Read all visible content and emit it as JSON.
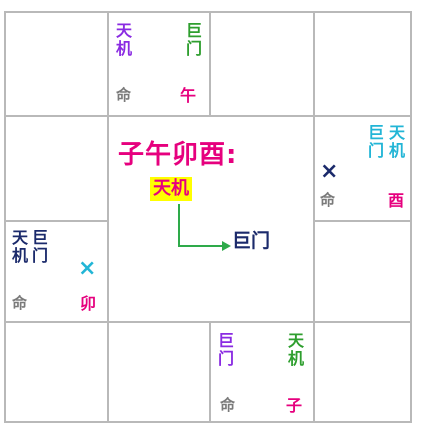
{
  "colors": {
    "grid": "#b9b9b9",
    "tianji": "#8a2be2",
    "jumen": "#2e9e2e",
    "cyan": "#22b5d6",
    "magenta": "#e6007e",
    "navy": "#1b2a6b",
    "arrow": "#2eaa4a",
    "highlight": "#ffff00"
  },
  "title": "子午卯酉:",
  "highlight_label": "天机",
  "arrow_target": "巨门",
  "palaces": {
    "wu": {
      "star_a": "天机",
      "star_b": "巨门",
      "ming": "命",
      "branch": "午"
    },
    "you": {
      "star_a": "巨门",
      "star_b": "天机",
      "mark": "×",
      "ming": "命",
      "branch": "酉"
    },
    "mao": {
      "star_a": "天机",
      "star_b": "巨门",
      "mark": "×",
      "ming": "命",
      "branch": "卯"
    },
    "zi": {
      "star_a": "巨门",
      "star_b": "天机",
      "ming": "命",
      "branch": "子"
    }
  }
}
